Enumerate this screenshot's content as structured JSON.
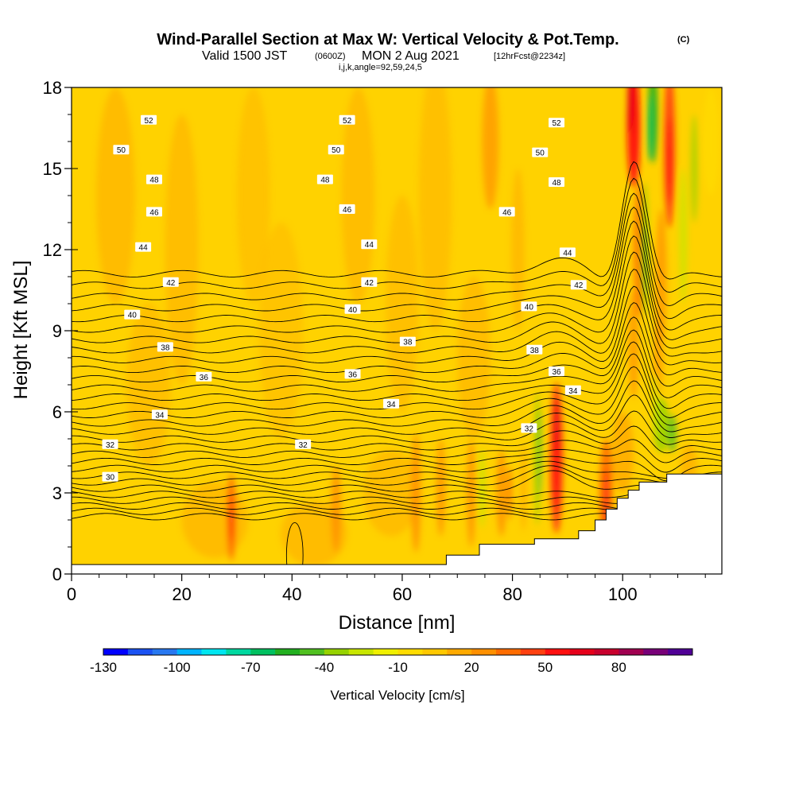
{
  "title": {
    "main": "Wind-Parallel Section at Max W: Vertical Velocity & Pot.Temp.",
    "main_suffix": "(C)",
    "sub_a": "Valid 1500 JST",
    "sub_b": "(0600Z)",
    "sub_c": "MON 2 Aug 2021",
    "sub_d": "[12hrFcst@2234z]",
    "params": "i,j,k,angle=92,59,24,5"
  },
  "chart_data": {
    "type": "heatmap",
    "xlabel": "Distance [nm]",
    "ylabel": "Height [Kft MSL]",
    "xlim": [
      0,
      118
    ],
    "ylim": [
      0,
      18
    ],
    "x_ticks": [
      "0",
      "20",
      "40",
      "60",
      "80",
      "100"
    ],
    "y_ticks": [
      "0",
      "3",
      "6",
      "9",
      "12",
      "15",
      "18"
    ],
    "colorbar": {
      "title": "Vertical Velocity [cm/s]",
      "tick_labels": [
        "-130",
        "-100",
        "-70",
        "-40",
        "-10",
        "20",
        "50",
        "80"
      ],
      "colors": [
        "#0000ff",
        "#1a52f2",
        "#2878f0",
        "#00b4ff",
        "#00e6f0",
        "#00d8a0",
        "#00c060",
        "#22b020",
        "#50c020",
        "#96d200",
        "#c8e600",
        "#f0f000",
        "#ffdc00",
        "#ffc800",
        "#ffaa00",
        "#ff9000",
        "#ff6c00",
        "#ff4010",
        "#ff1010",
        "#e6001a",
        "#c8002d",
        "#a00050",
        "#780078",
        "#500096"
      ]
    },
    "theta_contour_labels": [
      {
        "label": "52",
        "x": 14,
        "y": 16.8
      },
      {
        "label": "52",
        "x": 50,
        "y": 16.8
      },
      {
        "label": "52",
        "x": 88,
        "y": 16.7
      },
      {
        "label": "50",
        "x": 9,
        "y": 15.7
      },
      {
        "label": "50",
        "x": 48,
        "y": 15.7
      },
      {
        "label": "50",
        "x": 85,
        "y": 15.6
      },
      {
        "label": "48",
        "x": 15,
        "y": 14.6
      },
      {
        "label": "48",
        "x": 46,
        "y": 14.6
      },
      {
        "label": "48",
        "x": 88,
        "y": 14.5
      },
      {
        "label": "46",
        "x": 15,
        "y": 13.4
      },
      {
        "label": "46",
        "x": 50,
        "y": 13.5
      },
      {
        "label": "46",
        "x": 79,
        "y": 13.4
      },
      {
        "label": "44",
        "x": 13,
        "y": 12.1
      },
      {
        "label": "44",
        "x": 54,
        "y": 12.2
      },
      {
        "label": "44",
        "x": 90,
        "y": 11.9
      },
      {
        "label": "42",
        "x": 18,
        "y": 10.8
      },
      {
        "label": "42",
        "x": 54,
        "y": 10.8
      },
      {
        "label": "42",
        "x": 92,
        "y": 10.7
      },
      {
        "label": "40",
        "x": 11,
        "y": 9.6
      },
      {
        "label": "40",
        "x": 51,
        "y": 9.8
      },
      {
        "label": "40",
        "x": 83,
        "y": 9.9
      },
      {
        "label": "38",
        "x": 17,
        "y": 8.4
      },
      {
        "label": "38",
        "x": 61,
        "y": 8.6
      },
      {
        "label": "38",
        "x": 84,
        "y": 8.3
      },
      {
        "label": "36",
        "x": 24,
        "y": 7.3
      },
      {
        "label": "36",
        "x": 51,
        "y": 7.4
      },
      {
        "label": "36",
        "x": 88,
        "y": 7.5
      },
      {
        "label": "34",
        "x": 16,
        "y": 5.9
      },
      {
        "label": "34",
        "x": 58,
        "y": 6.3
      },
      {
        "label": "34",
        "x": 91,
        "y": 6.8
      },
      {
        "label": "32",
        "x": 7,
        "y": 4.8
      },
      {
        "label": "32",
        "x": 42,
        "y": 4.8
      },
      {
        "label": "32",
        "x": 83,
        "y": 5.4
      },
      {
        "label": "30",
        "x": 7,
        "y": 3.6
      }
    ]
  }
}
